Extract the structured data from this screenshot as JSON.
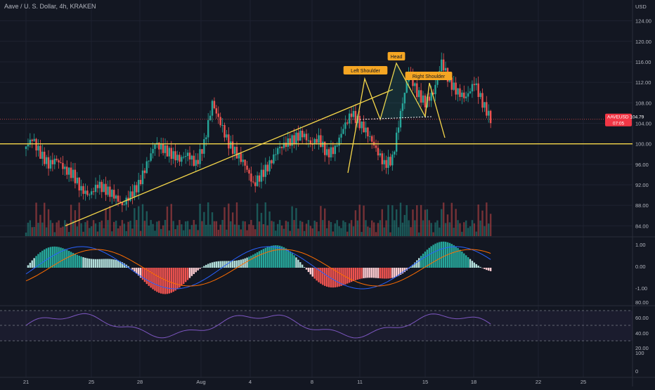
{
  "header": {
    "title": "Aave / U. S. Dollar, 4h, KRAKEN"
  },
  "price_scale": {
    "currency": "USD",
    "labels": [
      "124.00",
      "120.00",
      "116.00",
      "112.00",
      "108.00",
      "104.00",
      "100.00",
      "96.00",
      "92.00",
      "88.00",
      "84.00"
    ]
  },
  "macd_scale": {
    "labels": [
      "1.00",
      "0.00",
      "-1.00"
    ]
  },
  "rsi_scale": {
    "labels": [
      "80.00",
      "60.00",
      "40.00",
      "20.00",
      "100",
      "0"
    ]
  },
  "time_axis": {
    "labels": [
      "21",
      "25",
      "28",
      "Aug",
      "4",
      "8",
      "11",
      "15",
      "18",
      "22",
      "25"
    ]
  },
  "last_price": {
    "symbol": "AAVEUSD",
    "price": "104.79",
    "countdown": "07:05"
  },
  "annotations": {
    "left": "Left Shoulder",
    "head": "Head",
    "right": "Right Shoulder"
  },
  "colors": {
    "up": "#26a69a",
    "down": "#ef5350",
    "trend": "#f7d84a",
    "rsi": "#7e57c2",
    "tag": "#f5a623"
  },
  "chart_data": {
    "type": "candlestick",
    "symbol": "AAVEUSD",
    "interval": "4h",
    "ylim": [
      82,
      126
    ],
    "macd_ylim": [
      -1.5,
      1.5
    ],
    "rsi_ylim": [
      0,
      100
    ],
    "horizontal_line": 100.0,
    "trendline": [
      [
        2.4,
        84.0
      ],
      [
        24.6,
        110.6
      ]
    ],
    "candles": []
  }
}
